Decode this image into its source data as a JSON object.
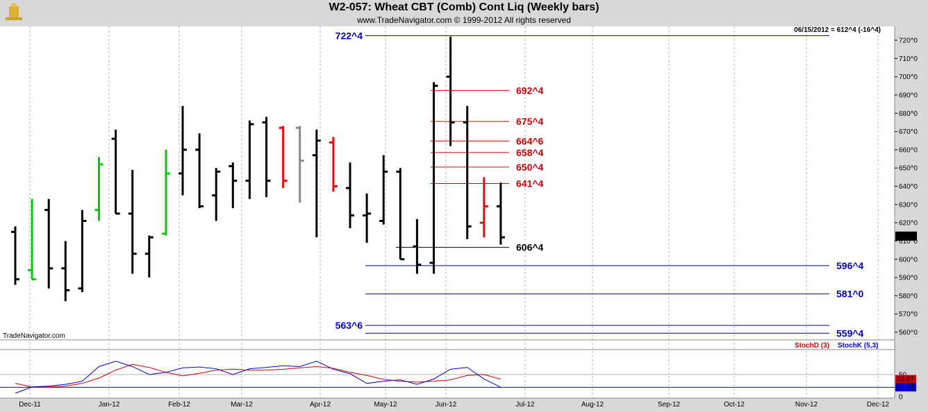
{
  "header": {
    "title": "W2-057:  Wheat CBT (Comb) Cont Liq  (Weekly bars)",
    "subtitle": "www.TradeNavigator.com © 1999-2012 All rights reserved"
  },
  "watermark": "TradeNavigator.com",
  "last_price_info": "06/15/2012 = 612^4 (-16^4)",
  "colors": {
    "up": "#000000",
    "down_red": "#ff0000",
    "gray": "#888888",
    "green": "#00cc00",
    "blue_level": "#0000cc",
    "red_level": "#cc0000",
    "stoch_d": "#cc0000",
    "stoch_k": "#0000cc"
  },
  "chart_data": [
    {
      "type": "ohlc",
      "x_ticks": [
        "Dec-11",
        "Jan-12",
        "Feb-12",
        "Mar-12",
        "Apr-12",
        "May-12",
        "Jun-12",
        "Jul-12",
        "Aug-12",
        "Sep-12",
        "Oct-12",
        "Nov-12",
        "Dec-12"
      ],
      "y_ticks": [
        "560^0",
        "570^0",
        "580^0",
        "590^0",
        "600^0",
        "610^0",
        "620^0",
        "630^0",
        "640^0",
        "650^0",
        "660^0",
        "670^0",
        "680^0",
        "690^0",
        "700^0",
        "710^0",
        "720^0"
      ],
      "ylim": [
        556,
        726
      ],
      "last_label": "612^4",
      "bars": [
        {
          "date": "2011-12-02",
          "o": 615,
          "h": 618,
          "l": 586,
          "c": 589,
          "color": "black"
        },
        {
          "date": "2011-12-09",
          "o": 594,
          "h": 633,
          "l": 589,
          "c": 589,
          "color": "green"
        },
        {
          "date": "2011-12-16",
          "o": 627,
          "h": 633,
          "l": 584,
          "c": 595,
          "color": "black"
        },
        {
          "date": "2011-12-23",
          "o": 595,
          "h": 610,
          "l": 577,
          "c": 583,
          "color": "black"
        },
        {
          "date": "2011-12-30",
          "o": 584,
          "h": 627,
          "l": 582,
          "c": 621,
          "color": "black"
        },
        {
          "date": "2012-01-06",
          "o": 627,
          "h": 656,
          "l": 621,
          "c": 652,
          "color": "green"
        },
        {
          "date": "2012-01-13",
          "o": 666,
          "h": 671,
          "l": 625,
          "c": 625,
          "color": "black"
        },
        {
          "date": "2012-01-20",
          "o": 625,
          "h": 649,
          "l": 592,
          "c": 603,
          "color": "black"
        },
        {
          "date": "2012-01-27",
          "o": 603,
          "h": 613,
          "l": 590,
          "c": 612,
          "color": "black"
        },
        {
          "date": "2012-02-03",
          "o": 614,
          "h": 660,
          "l": 613,
          "c": 647,
          "color": "green"
        },
        {
          "date": "2012-02-10",
          "o": 647,
          "h": 684,
          "l": 635,
          "c": 660,
          "color": "black"
        },
        {
          "date": "2012-02-17",
          "o": 660,
          "h": 669,
          "l": 628,
          "c": 629,
          "color": "black"
        },
        {
          "date": "2012-02-24",
          "o": 635,
          "h": 650,
          "l": 621,
          "c": 648,
          "color": "black"
        },
        {
          "date": "2012-03-02",
          "o": 651,
          "h": 653,
          "l": 628,
          "c": 643,
          "color": "black"
        },
        {
          "date": "2012-03-09",
          "o": 643,
          "h": 676,
          "l": 633,
          "c": 674,
          "color": "black"
        },
        {
          "date": "2012-03-16",
          "o": 675,
          "h": 678,
          "l": 634,
          "c": 643,
          "color": "black"
        },
        {
          "date": "2012-03-23",
          "o": 672,
          "h": 673,
          "l": 639,
          "c": 643,
          "color": "red"
        },
        {
          "date": "2012-03-30",
          "o": 672,
          "h": 673,
          "l": 631,
          "c": 654,
          "color": "gray"
        },
        {
          "date": "2012-04-06",
          "o": 657,
          "h": 671,
          "l": 612,
          "c": 665,
          "color": "black"
        },
        {
          "date": "2012-04-13",
          "o": 664,
          "h": 667,
          "l": 637,
          "c": 640,
          "color": "red"
        },
        {
          "date": "2012-04-20",
          "o": 639,
          "h": 653,
          "l": 617,
          "c": 624,
          "color": "black"
        },
        {
          "date": "2012-04-27",
          "o": 624,
          "h": 636,
          "l": 609,
          "c": 625,
          "color": "black"
        },
        {
          "date": "2012-05-04",
          "o": 621,
          "h": 657,
          "l": 619,
          "c": 648,
          "color": "black"
        },
        {
          "date": "2012-05-11",
          "o": 648,
          "h": 650,
          "l": 600,
          "c": 600,
          "color": "black"
        },
        {
          "date": "2012-05-18",
          "o": 607,
          "h": 622,
          "l": 592,
          "c": 597,
          "color": "black"
        },
        {
          "date": "2012-05-25",
          "o": 598,
          "h": 697,
          "l": 592,
          "c": 695,
          "color": "black"
        },
        {
          "date": "2012-06-01",
          "o": 700,
          "h": 722,
          "l": 662,
          "c": 675,
          "color": "black"
        },
        {
          "date": "2012-06-08",
          "o": 675,
          "h": 684,
          "l": 611,
          "c": 618,
          "color": "black"
        },
        {
          "date": "2012-06-15",
          "o": 620,
          "h": 645,
          "l": 612,
          "c": 629,
          "color": "red"
        },
        {
          "date": "2012-06-22",
          "o": 629,
          "h": 642,
          "l": 608,
          "c": 612,
          "color": "black"
        }
      ],
      "levels": [
        {
          "value": 722.5,
          "label": "722^4",
          "color": "#000080",
          "label_color": "#0000cc",
          "label_side": "left"
        },
        {
          "value": 692.5,
          "label": "692^4",
          "color": "#cc0000",
          "label_color": "#cc0000",
          "label_side": "right_near"
        },
        {
          "value": 675.5,
          "label": "675^4",
          "color": "#cc0000",
          "label_color": "#cc0000",
          "label_side": "right_near"
        },
        {
          "value": 664.75,
          "label": "664^6",
          "color": "#cc0000",
          "label_color": "#cc0000",
          "label_side": "right_near"
        },
        {
          "value": 658.5,
          "label": "658^4",
          "color": "#cc0000",
          "label_color": "#cc0000",
          "label_side": "right_near"
        },
        {
          "value": 650.5,
          "label": "650^4",
          "color": "#cc0000",
          "label_color": "#cc0000",
          "label_side": "right_near"
        },
        {
          "value": 641.5,
          "label": "641^4",
          "color": "#cc0000",
          "label_color": "#cc0000",
          "label_side": "right_near"
        },
        {
          "value": 606.5,
          "label": "606^4",
          "color": "#000000",
          "label_color": "#000000",
          "label_side": "right_near"
        },
        {
          "value": 596.5,
          "label": "596^4",
          "color": "#000080",
          "label_color": "#0000cc",
          "label_side": "right_far"
        },
        {
          "value": 581.0,
          "label": "581^0",
          "color": "#000080",
          "label_color": "#0000cc",
          "label_side": "right_far"
        },
        {
          "value": 563.75,
          "label": "563^6",
          "color": "#000080",
          "label_color": "#0000cc",
          "label_side": "left"
        },
        {
          "value": 559.5,
          "label": "559^4",
          "color": "#000080",
          "label_color": "#0000cc",
          "label_side": "right_far"
        }
      ]
    },
    {
      "type": "line",
      "title": "StochD (3)  StochK (5,3)",
      "legend": [
        {
          "name": "StochD (3)",
          "color": "#cc0000"
        },
        {
          "name": "StochK (5,3)",
          "color": "#0000cc"
        }
      ],
      "ylim": [
        0,
        100
      ],
      "y_ticks": [
        "0",
        "50"
      ],
      "last_values": [
        "39.67",
        "21.32"
      ],
      "series": [
        {
          "name": "StochD (3)",
          "values": [
            30,
            22,
            22,
            24,
            30,
            42,
            60,
            73,
            66,
            55,
            47,
            53,
            60,
            62,
            60,
            60,
            62,
            65,
            68,
            64,
            55,
            48,
            39,
            35,
            33,
            35,
            38,
            48,
            50,
            39.67
          ]
        },
        {
          "name": "StochK (5,3)",
          "values": [
            8,
            22,
            24,
            28,
            35,
            68,
            80,
            68,
            50,
            55,
            65,
            67,
            63,
            50,
            63,
            66,
            70,
            68,
            80,
            62,
            52,
            30,
            35,
            38,
            28,
            40,
            62,
            66,
            40,
            21.32
          ]
        }
      ]
    }
  ]
}
